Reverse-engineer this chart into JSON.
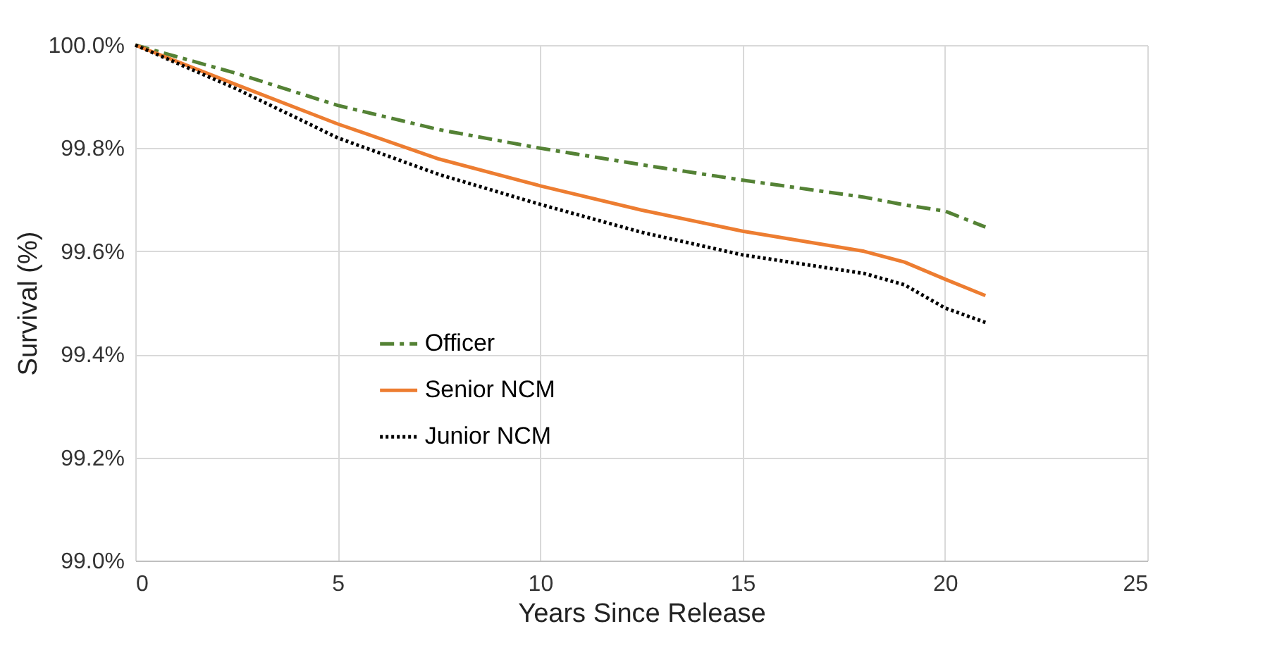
{
  "chart_data": {
    "type": "line",
    "xlabel": "Years Since Release",
    "ylabel": "Survival (%)",
    "x": [
      0,
      2.5,
      5,
      7.5,
      10,
      12.5,
      15,
      18,
      19,
      20,
      21
    ],
    "series": [
      {
        "name": "Officer",
        "color": "#548235",
        "line_style": "dashdot",
        "values": [
          100,
          99.945,
          99.883,
          99.836,
          99.8,
          99.768,
          99.738,
          99.705,
          99.69,
          99.678,
          99.647
        ]
      },
      {
        "name": "Senior NCM",
        "color": "#ed7d31",
        "line_style": "solid",
        "values": [
          100,
          99.923,
          99.847,
          99.779,
          99.727,
          99.68,
          99.639,
          99.6,
          99.579,
          99.546,
          99.514
        ]
      },
      {
        "name": "Junior NCM",
        "color": "#000000",
        "line_style": "dotted",
        "values": [
          100,
          99.915,
          99.82,
          99.749,
          99.691,
          99.637,
          99.593,
          99.557,
          99.535,
          99.49,
          99.462
        ]
      }
    ],
    "xlim": [
      0,
      25
    ],
    "xticks": [
      0,
      5,
      10,
      15,
      20,
      25
    ],
    "ylim": [
      99,
      100
    ],
    "yticks": [
      {
        "value": 99,
        "label": "99.0%"
      },
      {
        "value": 99.2,
        "label": "99.2%"
      },
      {
        "value": 99.4,
        "label": "99.4%"
      },
      {
        "value": 99.6,
        "label": "99.6%"
      },
      {
        "value": 99.8,
        "label": "99.8%"
      },
      {
        "value": 100,
        "label": "100.0%"
      }
    ],
    "grid": true,
    "legend": "left",
    "marker": "none"
  }
}
